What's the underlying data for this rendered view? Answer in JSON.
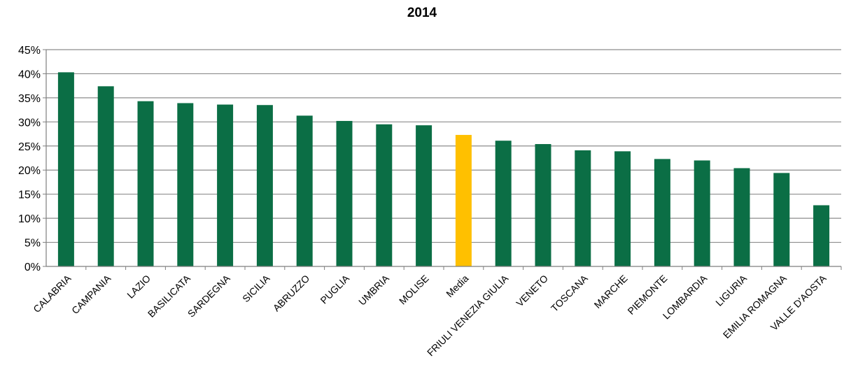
{
  "chart_data": {
    "type": "bar",
    "title": "2014",
    "xlabel": "",
    "ylabel": "",
    "categories": [
      "CALABRIA",
      "CAMPANIA",
      "LAZIO",
      "BASILICATA",
      "SARDEGNA",
      "SICILIA",
      "ABRUZZO",
      "PUGLIA",
      "UMBRIA",
      "MOLISE",
      "Media",
      "FRIULI VENEZIA GIULIA",
      "VENETO",
      "TOSCANA",
      "MARCHE",
      "PIEMONTE",
      "LOMBARDIA",
      "LIGURIA",
      "EMILIA ROMAGNA",
      "VALLE D'AOSTA"
    ],
    "values": [
      40.3,
      37.4,
      34.3,
      33.9,
      33.6,
      33.5,
      31.3,
      30.2,
      29.5,
      29.3,
      27.3,
      26.1,
      25.4,
      24.1,
      23.9,
      22.3,
      22.0,
      20.4,
      19.4,
      12.7
    ],
    "ylim": [
      0,
      45
    ],
    "yticks": [
      "0%",
      "5%",
      "10%",
      "15%",
      "20%",
      "25%",
      "30%",
      "35%",
      "40%",
      "45%"
    ],
    "grid": true,
    "legend": "none",
    "colors": {
      "bar": "#0b6e45",
      "highlight": "#ffc000",
      "grid": "#8c8c8c",
      "axis": "#7f7f7f"
    },
    "highlight_category": "Media"
  }
}
